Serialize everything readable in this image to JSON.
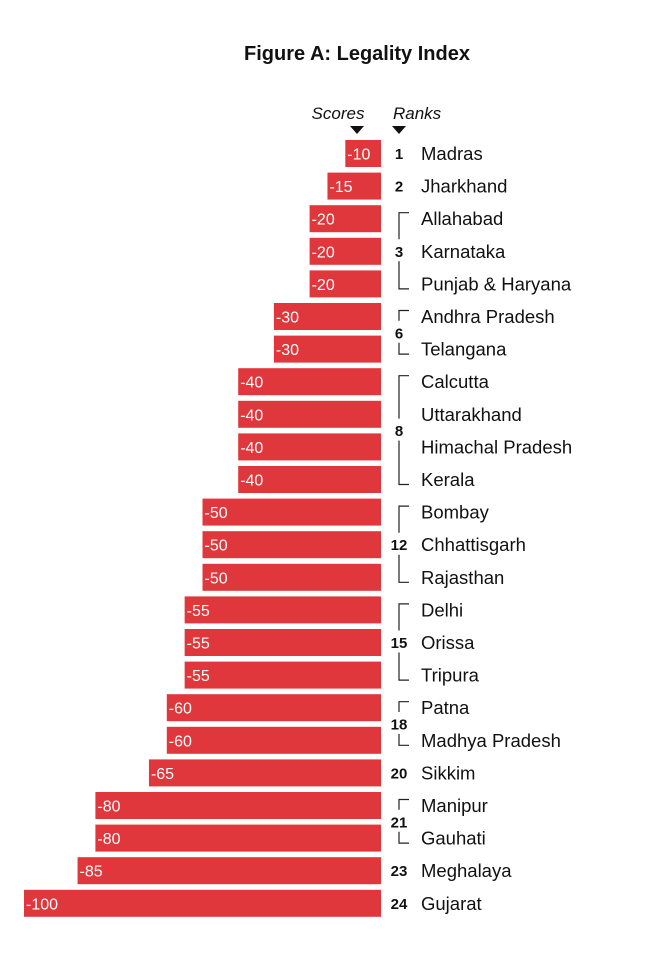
{
  "chart_data": {
    "type": "bar",
    "title": "Figure A: Legality Index",
    "headers": {
      "scores": "Scores",
      "ranks": "Ranks"
    },
    "xlim": [
      -100,
      0
    ],
    "bar_color": "#e0373c",
    "rows": [
      {
        "name": "Madras",
        "value": -10
      },
      {
        "name": "Jharkhand",
        "value": -15
      },
      {
        "name": "Allahabad",
        "value": -20
      },
      {
        "name": "Karnataka",
        "value": -20
      },
      {
        "name": "Punjab & Haryana",
        "value": -20
      },
      {
        "name": "Andhra Pradesh",
        "value": -30
      },
      {
        "name": "Telangana",
        "value": -30
      },
      {
        "name": "Calcutta",
        "value": -40
      },
      {
        "name": "Uttarakhand",
        "value": -40
      },
      {
        "name": "Himachal Pradesh",
        "value": -40
      },
      {
        "name": "Kerala",
        "value": -40
      },
      {
        "name": "Bombay",
        "value": -50
      },
      {
        "name": "Chhattisgarh",
        "value": -50
      },
      {
        "name": "Rajasthan",
        "value": -50
      },
      {
        "name": "Delhi",
        "value": -55
      },
      {
        "name": "Orissa",
        "value": -55
      },
      {
        "name": "Tripura",
        "value": -55
      },
      {
        "name": "Patna",
        "value": -60
      },
      {
        "name": "Madhya Pradesh",
        "value": -60
      },
      {
        "name": "Sikkim",
        "value": -65
      },
      {
        "name": "Manipur",
        "value": -80
      },
      {
        "name": "Gauhati",
        "value": -80
      },
      {
        "name": "Meghalaya",
        "value": -85
      },
      {
        "name": "Gujarat",
        "value": -100
      }
    ],
    "rank_groups": [
      {
        "rank": "1",
        "members": [
          0
        ]
      },
      {
        "rank": "2",
        "members": [
          1
        ]
      },
      {
        "rank": "3",
        "members": [
          2,
          3,
          4
        ]
      },
      {
        "rank": "6",
        "members": [
          5,
          6
        ]
      },
      {
        "rank": "8",
        "members": [
          7,
          8,
          9,
          10
        ]
      },
      {
        "rank": "12",
        "members": [
          11,
          12,
          13
        ]
      },
      {
        "rank": "15",
        "members": [
          14,
          15,
          16
        ]
      },
      {
        "rank": "18",
        "members": [
          17,
          18
        ]
      },
      {
        "rank": "20",
        "members": [
          19
        ]
      },
      {
        "rank": "21",
        "members": [
          20,
          21
        ]
      },
      {
        "rank": "23",
        "members": [
          22
        ]
      },
      {
        "rank": "24",
        "members": [
          23
        ]
      }
    ]
  }
}
